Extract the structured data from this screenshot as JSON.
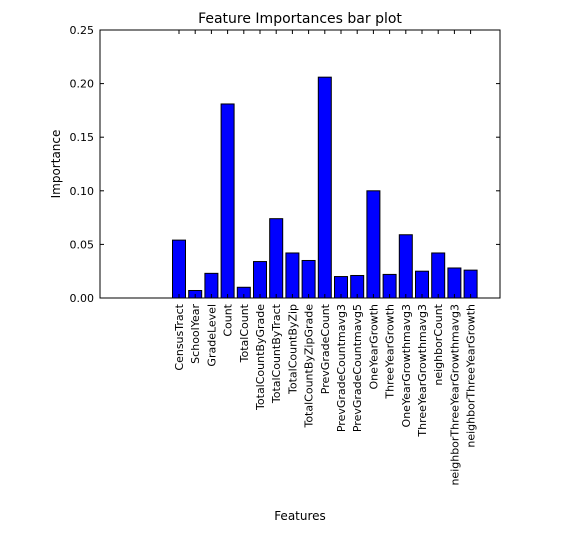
{
  "chart_data": {
    "type": "bar",
    "title": "Feature Importances bar plot",
    "xlabel": "Features",
    "ylabel": "Importance",
    "ylim": [
      0,
      0.25
    ],
    "yticks": [
      "0.00",
      "0.05",
      "0.10",
      "0.15",
      "0.20",
      "0.25"
    ],
    "bar_color": "#0000ff",
    "grid": false,
    "categories": [
      "CensusTract",
      "SchoolYear",
      "GradeLevel",
      "Count",
      "TotalCount",
      "TotalCountByGrade",
      "TotalCountByTract",
      "TotalCountByZip",
      "TotalCountByZipGrade",
      "PrevGradeCount",
      "PrevGradeCountmavg3",
      "PrevGradeCountmavg5",
      "OneYearGrowth",
      "ThreeYearGrowth",
      "OneYearGrowthmavg3",
      "ThreeYearGrowthmavg3",
      "neighborCount",
      "neighborThreeYearGrowthmavg3",
      "neighborThreeYearGrowth"
    ],
    "values": [
      0.054,
      0.007,
      0.023,
      0.181,
      0.01,
      0.034,
      0.074,
      0.042,
      0.035,
      0.206,
      0.02,
      0.021,
      0.1,
      0.022,
      0.059,
      0.025,
      0.042,
      0.028,
      0.026
    ]
  }
}
